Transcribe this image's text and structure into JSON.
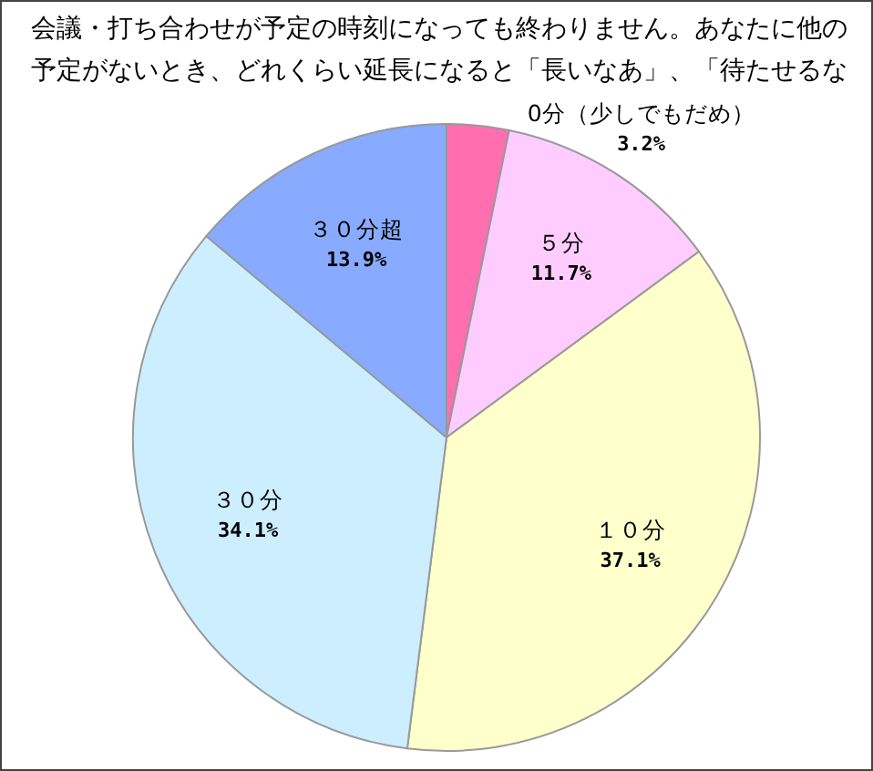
{
  "chart_data": {
    "type": "pie",
    "title": "会議・打ち合わせが予定の時刻になっても終わりません。あなたに他の予定がないとき、どれくらい延長になると「長いなあ」、「待たせるな",
    "categories": [
      "0分（少しでもだめ）",
      "５分",
      "１０分",
      "３０分",
      "３０分超"
    ],
    "values": [
      3.2,
      11.7,
      37.1,
      34.1,
      13.9
    ],
    "colors": [
      "#ff6fb0",
      "#ffccff",
      "#ffffcc",
      "#cceeff",
      "#88aaff"
    ],
    "value_labels": [
      "3.2%",
      "11.7%",
      "37.1%",
      "34.1%",
      "13.9%"
    ]
  }
}
